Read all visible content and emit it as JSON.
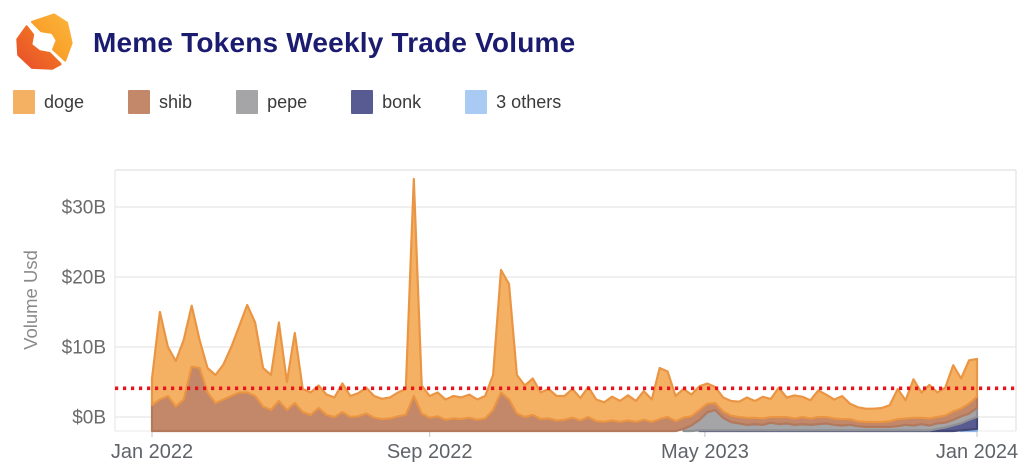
{
  "header": {
    "title": "Meme Tokens Weekly Trade Volume"
  },
  "brand": {
    "title_color": "#1b1c70",
    "logo_gradient_left": [
      "#e84e2b",
      "#f5831f"
    ],
    "logo_gradient_right": [
      "#f6921e",
      "#fcb53b"
    ]
  },
  "chart_data": {
    "type": "area",
    "stacked": true,
    "title": "Meme Tokens Weekly Trade Volume",
    "xlabel": "",
    "ylabel": "Volume Usd",
    "unit": "billion USD per week",
    "x_span": "Jan 2022 to Jan 2024, weekly points",
    "n_points": 105,
    "grid": "horizontal",
    "legend_position": "top-left",
    "axis_text_color": "#6a6a6a",
    "xticks": [
      {
        "week": 0,
        "label": "Jan 2022"
      },
      {
        "week": 35,
        "label": "Sep 2022"
      },
      {
        "week": 69.7,
        "label": "May 2023"
      },
      {
        "week": 104,
        "label": "Jan 2024"
      }
    ],
    "yticks": [
      {
        "value": 0,
        "label": "$0B"
      },
      {
        "value": 10,
        "label": "$10B"
      },
      {
        "value": 20,
        "label": "$20B"
      },
      {
        "value": 30,
        "label": "$30B"
      }
    ],
    "ylim_axis": [
      -2,
      36.7
    ],
    "avg_line": {
      "value": 4.1,
      "color": "#e8131b",
      "style": "dotted"
    },
    "stack_order_bottom_to_top": [
      "3 others",
      "bonk",
      "pepe",
      "shib",
      "doge"
    ],
    "series": [
      {
        "name": "doge",
        "color": "#f4b164",
        "stroke": "#ea9543",
        "values": [
          3.8,
          12.5,
          7.0,
          6.5,
          8.5,
          8.7,
          4.0,
          3.5,
          4.0,
          5.0,
          7.0,
          9.5,
          12.5,
          10.5,
          5.5,
          5.0,
          11.2,
          4.0,
          10.0,
          3.3,
          3.2,
          3.2,
          2.9,
          2.8,
          4.1,
          3.0,
          3.3,
          3.7,
          3.1,
          2.9,
          3.0,
          3.4,
          3.7,
          31.0,
          4.0,
          3.1,
          3.4,
          2.9,
          3.2,
          3.1,
          3.3,
          2.9,
          3.2,
          5.0,
          17.5,
          16.5,
          5.5,
          4.5,
          5.2,
          3.8,
          4.2,
          3.5,
          3.4,
          4.1,
          3.2,
          4.3,
          3.1,
          2.8,
          3.4,
          3.0,
          3.6,
          3.0,
          4.1,
          3.2,
          7.3,
          6.5,
          3.6,
          4.1,
          3.1,
          3.4,
          2.9,
          2.3,
          2.0,
          2.1,
          2.2,
          2.9,
          2.4,
          3.1,
          2.6,
          4.2,
          2.8,
          3.3,
          2.9,
          2.6,
          3.8,
          3.2,
          2.7,
          3.3,
          2.2,
          2.0,
          1.9,
          1.9,
          2.0,
          2.3,
          4.3,
          2.6,
          5.5,
          3.6,
          4.8,
          3.5,
          4.0,
          6.6,
          4.3,
          6.2,
          5.4
        ]
      },
      {
        "name": "shib",
        "color": "#c3886a",
        "stroke": "#b3795c",
        "values": [
          3.7,
          4.5,
          5.0,
          3.5,
          4.5,
          9.2,
          9.0,
          5.5,
          4.0,
          4.5,
          5.0,
          5.5,
          5.5,
          5.0,
          3.5,
          3.0,
          4.3,
          3.0,
          4.0,
          2.7,
          2.3,
          3.3,
          2.3,
          2.0,
          2.7,
          2.0,
          2.1,
          2.5,
          1.9,
          1.7,
          1.8,
          2.1,
          2.3,
          5.0,
          2.5,
          1.9,
          2.1,
          1.6,
          1.8,
          1.7,
          1.9,
          1.6,
          1.8,
          3.0,
          5.5,
          4.5,
          2.5,
          2.0,
          2.3,
          1.7,
          1.8,
          1.5,
          1.6,
          1.9,
          1.5,
          2.0,
          1.4,
          1.3,
          1.5,
          1.3,
          1.5,
          1.3,
          1.6,
          1.3,
          1.7,
          2.0,
          1.4,
          1.6,
          1.3,
          1.4,
          1.2,
          1.0,
          0.9,
          0.9,
          0.9,
          1.0,
          0.9,
          0.9,
          0.8,
          1.0,
          0.9,
          0.9,
          1.0,
          0.9,
          1.0,
          0.9,
          0.9,
          0.9,
          0.8,
          0.7,
          0.7,
          0.7,
          0.7,
          0.8,
          1.0,
          0.9,
          1.1,
          0.9,
          1.0,
          0.9,
          1.0,
          1.2,
          1.1,
          1.4,
          1.6
        ]
      },
      {
        "name": "pepe",
        "color": "#a5a5a7",
        "stroke": "#8f9093",
        "values": [
          0,
          0,
          0,
          0,
          0,
          0,
          0,
          0,
          0,
          0,
          0,
          0,
          0,
          0,
          0,
          0,
          0,
          0,
          0,
          0,
          0,
          0,
          0,
          0,
          0,
          0,
          0,
          0,
          0,
          0,
          0,
          0,
          0,
          0,
          0,
          0,
          0,
          0,
          0,
          0,
          0,
          0,
          0,
          0,
          0,
          0,
          0,
          0,
          0,
          0,
          0,
          0,
          0,
          0,
          0,
          0,
          0,
          0,
          0,
          0,
          0,
          0,
          0,
          0,
          0,
          0,
          0,
          0.3,
          0.8,
          1.5,
          2.6,
          2.9,
          1.8,
          1.2,
          1.0,
          0.8,
          0.9,
          0.8,
          1.1,
          0.9,
          1.0,
          0.8,
          0.9,
          0.8,
          0.9,
          1.0,
          0.8,
          0.7,
          0.8,
          0.6,
          0.5,
          0.5,
          0.5,
          0.5,
          0.6,
          0.8,
          0.7,
          0.9,
          0.7,
          0.8,
          0.7,
          0.8,
          1.0,
          0.9,
          1.3
        ]
      },
      {
        "name": "bonk",
        "color": "#575b91",
        "stroke": "#434876",
        "values": [
          0,
          0,
          0,
          0,
          0,
          0,
          0,
          0,
          0,
          0,
          0,
          0,
          0,
          0,
          0,
          0,
          0,
          0,
          0,
          0,
          0,
          0,
          0,
          0,
          0,
          0,
          0,
          0,
          0,
          0,
          0,
          0,
          0,
          0,
          0,
          0,
          0,
          0,
          0,
          0,
          0,
          0,
          0,
          0,
          0,
          0,
          0,
          0,
          0,
          0,
          0,
          0,
          0,
          0,
          0,
          0,
          0,
          0,
          0,
          0,
          0,
          0,
          0,
          0,
          0,
          0,
          0,
          0,
          0,
          0.08,
          0.08,
          0.08,
          0.08,
          0.08,
          0.08,
          0.08,
          0.08,
          0.08,
          0.08,
          0.08,
          0.08,
          0.08,
          0.08,
          0.08,
          0.08,
          0.08,
          0.08,
          0.08,
          0.08,
          0.08,
          0.08,
          0.08,
          0.08,
          0.08,
          0.08,
          0.08,
          0.08,
          0.08,
          0.08,
          0.3,
          0.5,
          0.8,
          1.0,
          1.4,
          1.7
        ]
      },
      {
        "name": "3 others",
        "color": "#a9caf3",
        "stroke": "#8fb7e9",
        "values": [
          0,
          0,
          0,
          0,
          0,
          0,
          0,
          0,
          0,
          0,
          0,
          0,
          0,
          0,
          0,
          0,
          0,
          0,
          0,
          0,
          0,
          0,
          0,
          0,
          0,
          0,
          0,
          0,
          0,
          0,
          0,
          0,
          0,
          0,
          0,
          0,
          0,
          0,
          0,
          0,
          0,
          0,
          0,
          0,
          0,
          0,
          0,
          0,
          0,
          0,
          0,
          0,
          0,
          0,
          0,
          0,
          0,
          0,
          0,
          0,
          0,
          0,
          0,
          0,
          0,
          0,
          0,
          0,
          0,
          0,
          0,
          0,
          0,
          0,
          0,
          0,
          0,
          0,
          0,
          0,
          0,
          0,
          0,
          0,
          0,
          0,
          0,
          0,
          0,
          0,
          0,
          0,
          0,
          0,
          0,
          0,
          0,
          0,
          0,
          0,
          0,
          0,
          0.1,
          0.2,
          0.3
        ]
      }
    ]
  }
}
